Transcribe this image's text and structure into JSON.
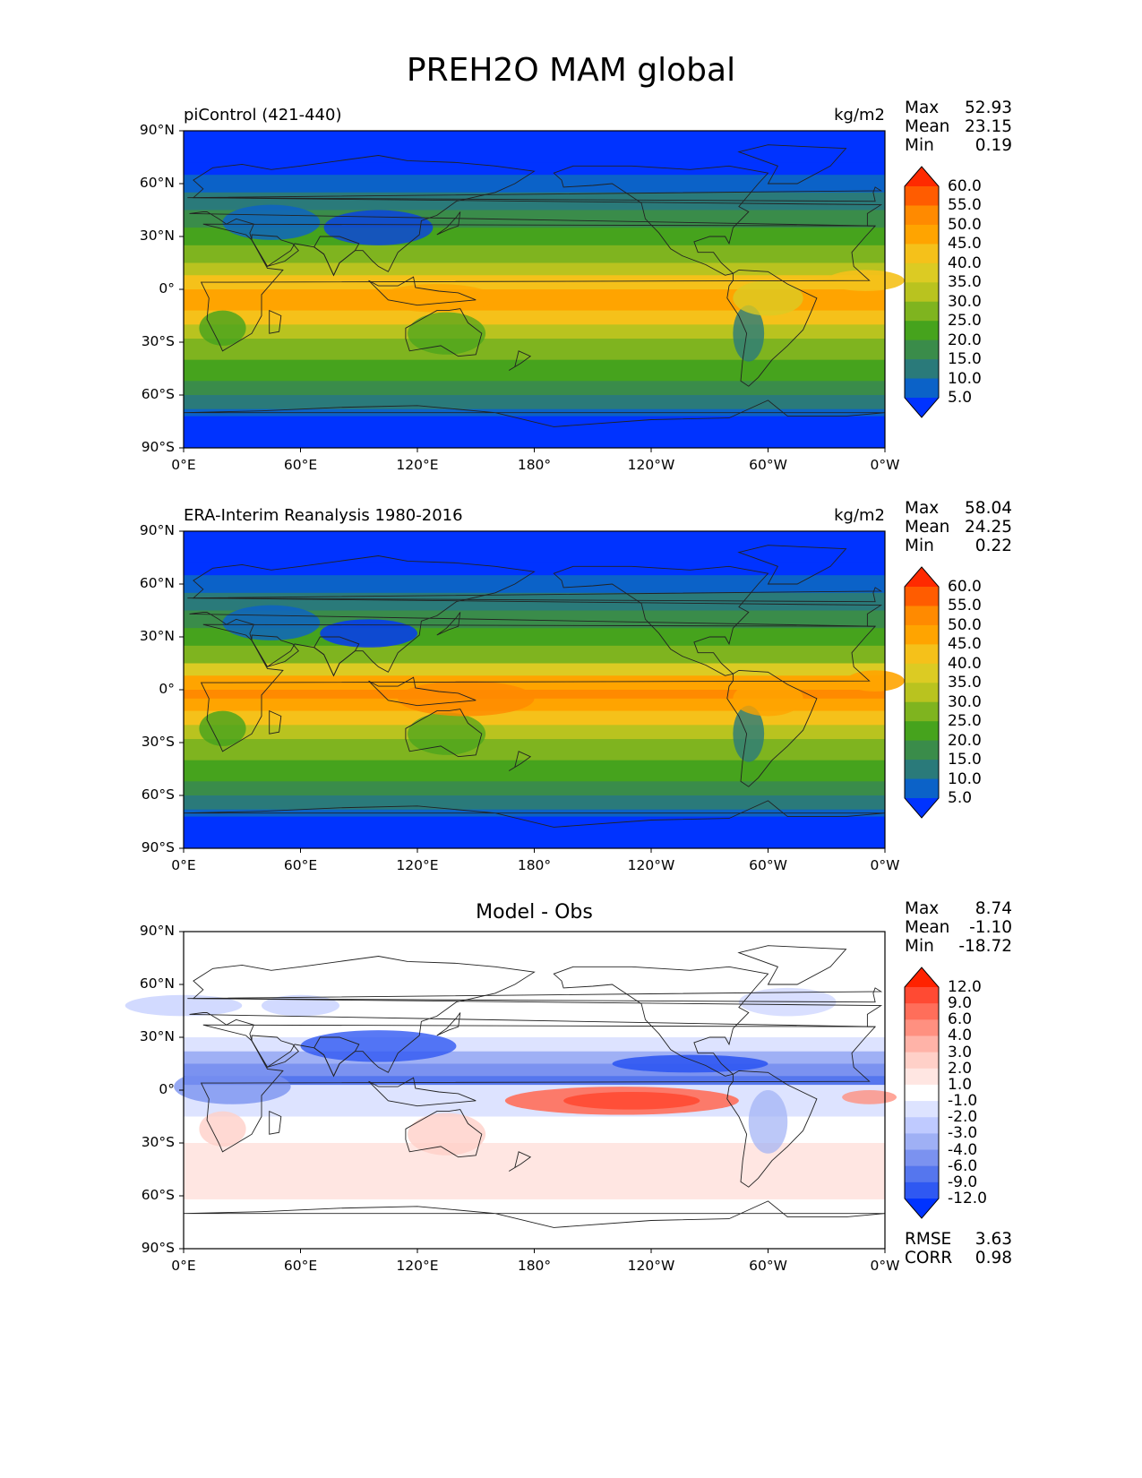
{
  "figure": {
    "title": "PREH2O MAM global"
  },
  "axes": {
    "lat_ticks": [
      "90°N",
      "60°N",
      "30°N",
      "0°",
      "30°S",
      "60°S",
      "90°S"
    ],
    "lon_ticks": [
      "0°E",
      "60°E",
      "120°E",
      "180°",
      "120°W",
      "60°W",
      "0°W"
    ]
  },
  "chart_data": [
    {
      "type": "heatmap",
      "title": "piControl (421-440)",
      "units": "kg/m2",
      "stats": [
        {
          "label": "Max",
          "value": "52.93"
        },
        {
          "label": "Mean",
          "value": "23.15"
        },
        {
          "label": "Min",
          "value": "0.19"
        }
      ],
      "colorbar": {
        "labels": [
          "60.0",
          "55.0",
          "50.0",
          "45.0",
          "40.0",
          "35.0",
          "30.0",
          "25.0",
          "20.0",
          "15.0",
          "10.0",
          "5.0"
        ],
        "colors": [
          "#ff2a00",
          "#ff5c00",
          "#ff8a00",
          "#ffa400",
          "#f5c11a",
          "#dccb23",
          "#b9c31f",
          "#7fb41f",
          "#46a31d",
          "#3a8c4a",
          "#2a7a7a",
          "#0b62c8",
          "#0033ff"
        ]
      },
      "xlim": [
        0,
        360
      ],
      "ylim": [
        -90,
        90
      ]
    },
    {
      "type": "heatmap",
      "title": "ERA-Interim Reanalysis 1980-2016",
      "units": "kg/m2",
      "stats": [
        {
          "label": "Max",
          "value": "58.04"
        },
        {
          "label": "Mean",
          "value": "24.25"
        },
        {
          "label": "Min",
          "value": "0.22"
        }
      ],
      "colorbar": {
        "labels": [
          "60.0",
          "55.0",
          "50.0",
          "45.0",
          "40.0",
          "35.0",
          "30.0",
          "25.0",
          "20.0",
          "15.0",
          "10.0",
          "5.0"
        ],
        "colors": [
          "#ff2a00",
          "#ff5c00",
          "#ff8a00",
          "#ffa400",
          "#f5c11a",
          "#dccb23",
          "#b9c31f",
          "#7fb41f",
          "#46a31d",
          "#3a8c4a",
          "#2a7a7a",
          "#0b62c8",
          "#0033ff"
        ]
      },
      "xlim": [
        0,
        360
      ],
      "ylim": [
        -90,
        90
      ]
    },
    {
      "type": "heatmap",
      "title": "Model - Obs",
      "units": "",
      "stats": [
        {
          "label": "Max",
          "value": "8.74"
        },
        {
          "label": "Mean",
          "value": "-1.10"
        },
        {
          "label": "Min",
          "value": "-18.72"
        }
      ],
      "extra_stats": [
        {
          "label": "RMSE",
          "value": "3.63"
        },
        {
          "label": "CORR",
          "value": "0.98"
        }
      ],
      "colorbar": {
        "labels": [
          "12.0",
          "9.0",
          "6.0",
          "4.0",
          "3.0",
          "2.0",
          "1.0",
          "-1.0",
          "-2.0",
          "-3.0",
          "-4.0",
          "-6.0",
          "-9.0",
          "-12.0"
        ],
        "colors": [
          "#ff2200",
          "#ff4a33",
          "#ff6e5a",
          "#ff9080",
          "#ffb3a8",
          "#ffd0c8",
          "#ffe6e2",
          "#ffffff",
          "#dde3ff",
          "#bfcaff",
          "#9fb0f5",
          "#7b92f0",
          "#5576ee",
          "#2f58f2",
          "#0033ff"
        ]
      },
      "xlim": [
        0,
        360
      ],
      "ylim": [
        -90,
        90
      ]
    }
  ]
}
